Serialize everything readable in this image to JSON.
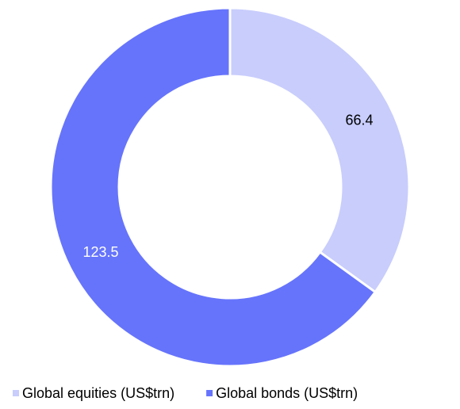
{
  "chart_data": {
    "type": "doughnut",
    "categories": [
      "Global equities (US$trn)",
      "Global bonds (US$trn)"
    ],
    "values": [
      66.4,
      123.5
    ],
    "colors": [
      "#c8cdfc",
      "#6674fb"
    ],
    "legend": "bottom"
  }
}
